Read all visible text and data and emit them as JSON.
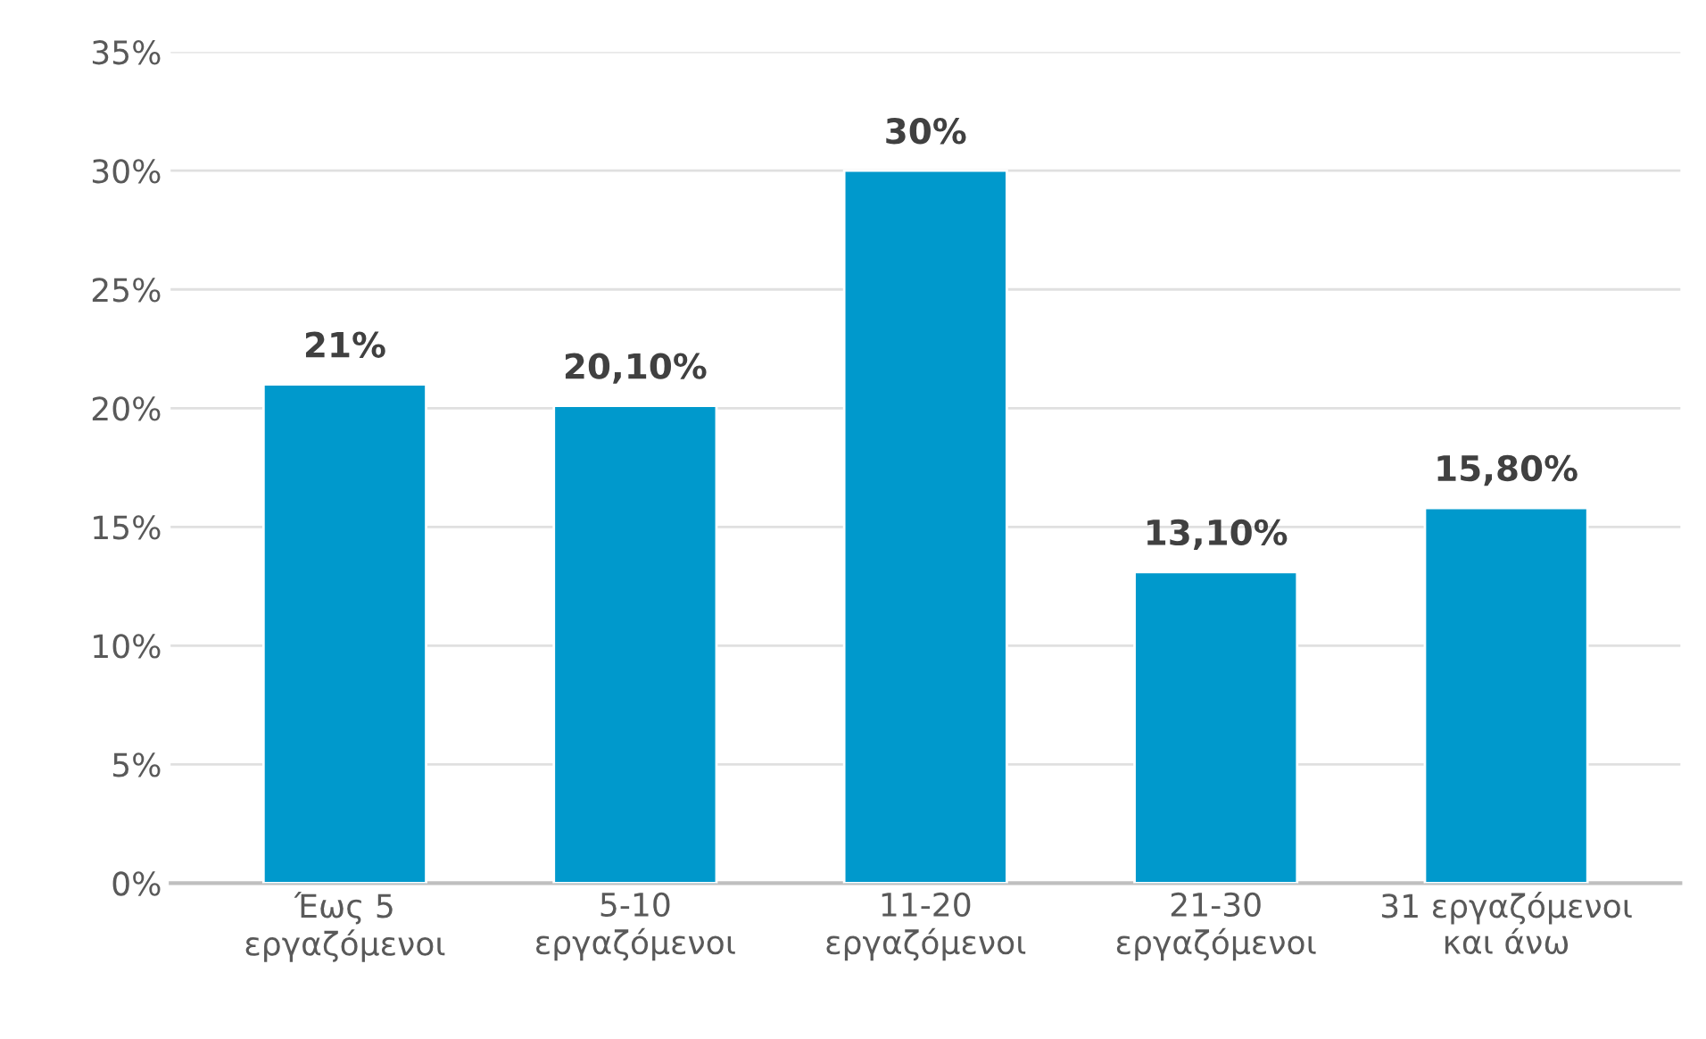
{
  "chart_data": {
    "type": "bar",
    "categories": [
      "Έως 5\nεργαζόμενοι",
      "5-10\nεργαζόμενοι",
      "11-20\nεργαζόμενοι",
      "21-30\nεργαζόμενοι",
      "31 εργαζόμενοι\nκαι άνω"
    ],
    "values": [
      21,
      20.1,
      30,
      13.1,
      15.8
    ],
    "value_labels": [
      "21%",
      "20,10%",
      "30%",
      "13,10%",
      "15,80%"
    ],
    "color": "#0099cc",
    "ylim": [
      0,
      35
    ],
    "yticks": [
      {
        "value": 0,
        "label": "0%"
      },
      {
        "value": 5,
        "label": "5%"
      },
      {
        "value": 10,
        "label": "10%"
      },
      {
        "value": 15,
        "label": "15%"
      },
      {
        "value": 20,
        "label": "20%"
      },
      {
        "value": 25,
        "label": "25%"
      },
      {
        "value": 30,
        "label": "30%"
      },
      {
        "value": 35,
        "label": "35%"
      }
    ],
    "grid": "y"
  }
}
